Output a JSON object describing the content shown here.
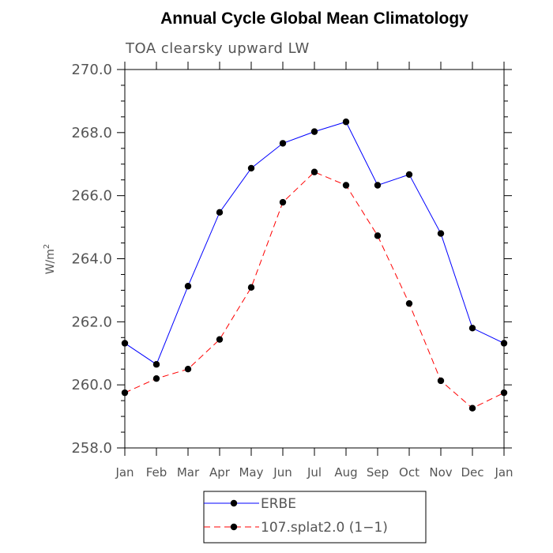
{
  "chart_data": {
    "type": "line",
    "title": "Annual Cycle Global Mean Climatology",
    "subtitle": "TOA clearsky upward LW",
    "xlabel": "",
    "ylabel": "W/m",
    "ylabel_superscript": "2",
    "categories": [
      "Jan",
      "Feb",
      "Mar",
      "Apr",
      "May",
      "Jun",
      "Jul",
      "Aug",
      "Sep",
      "Oct",
      "Nov",
      "Dec",
      "Jan"
    ],
    "yticks": [
      "258.0",
      "260.0",
      "262.0",
      "264.0",
      "266.0",
      "268.0",
      "270.0"
    ],
    "ylim": [
      258,
      270
    ],
    "grid": false,
    "legend_position": "bottom-center",
    "series": [
      {
        "name": "ERBE",
        "color": "#0000ff",
        "dash": "solid",
        "marker": "filled-circle",
        "values": [
          261.32,
          260.65,
          263.13,
          265.47,
          266.87,
          267.66,
          268.03,
          268.34,
          266.33,
          266.67,
          264.8,
          261.8,
          261.32
        ]
      },
      {
        "name": "107.splat2.0 (1−1)",
        "color": "#ff0000",
        "dash": "dashed",
        "marker": "filled-circle",
        "values": [
          259.75,
          260.2,
          260.5,
          261.44,
          263.09,
          265.79,
          266.75,
          266.33,
          264.73,
          262.58,
          260.13,
          259.26,
          259.75
        ]
      }
    ]
  }
}
